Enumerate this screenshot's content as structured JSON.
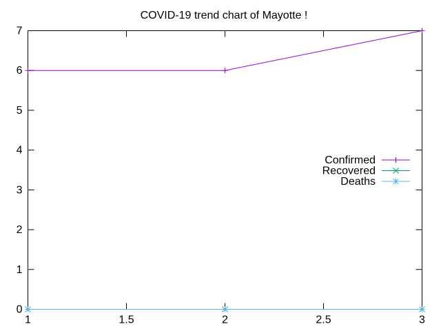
{
  "chart_data": {
    "type": "line",
    "title": "COVID-19 trend chart of Mayotte !",
    "xlabel": "",
    "ylabel": "",
    "xlim": [
      1,
      3
    ],
    "ylim": [
      0,
      7
    ],
    "x_ticks": [
      "1",
      "1.5",
      "2",
      "2.5",
      "3"
    ],
    "y_ticks": [
      "0",
      "1",
      "2",
      "3",
      "4",
      "5",
      "6",
      "7"
    ],
    "grid": false,
    "legend_position": "right",
    "series": [
      {
        "name": "Confirmed",
        "color": "#9400d3",
        "marker": "plus",
        "x": [
          1,
          2,
          3
        ],
        "y": [
          6,
          6,
          7
        ]
      },
      {
        "name": "Recovered",
        "color": "#009e73",
        "marker": "cross",
        "x": [
          1,
          2,
          3
        ],
        "y": [
          0,
          0,
          0
        ]
      },
      {
        "name": "Deaths",
        "color": "#56b4e9",
        "marker": "star",
        "x": [
          1,
          2,
          3
        ],
        "y": [
          0,
          0,
          0
        ]
      }
    ]
  }
}
